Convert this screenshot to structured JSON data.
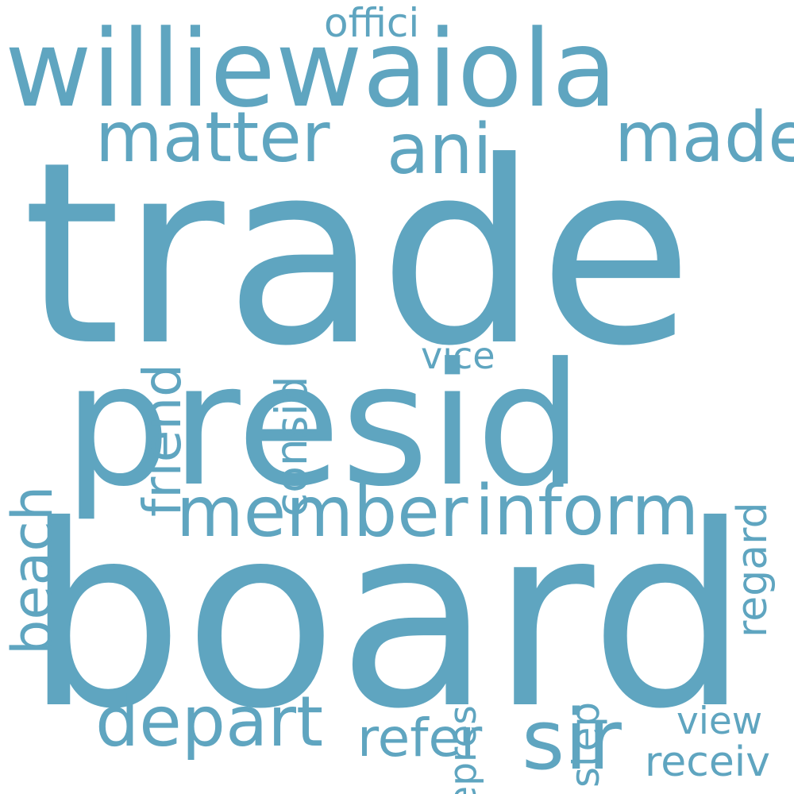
{
  "word_color": "#5fa5c0",
  "background_color": "#ffffff",
  "words": {
    "trade": "trade",
    "board": "board",
    "presid": "presid",
    "williewaiola": "williewaiola",
    "matter": "matter",
    "ani": "ani",
    "made": "made",
    "member": "member",
    "inform": "inform",
    "depart": "depart",
    "sir": "sir",
    "refer": "refer",
    "view": "view",
    "receiv": "receiv",
    "vice": "vice",
    "offici": "offici",
    "friend": "friend",
    "consid": "consid",
    "beach": "beach",
    "regard": "regard",
    "repres": "repres",
    "step": "step"
  }
}
